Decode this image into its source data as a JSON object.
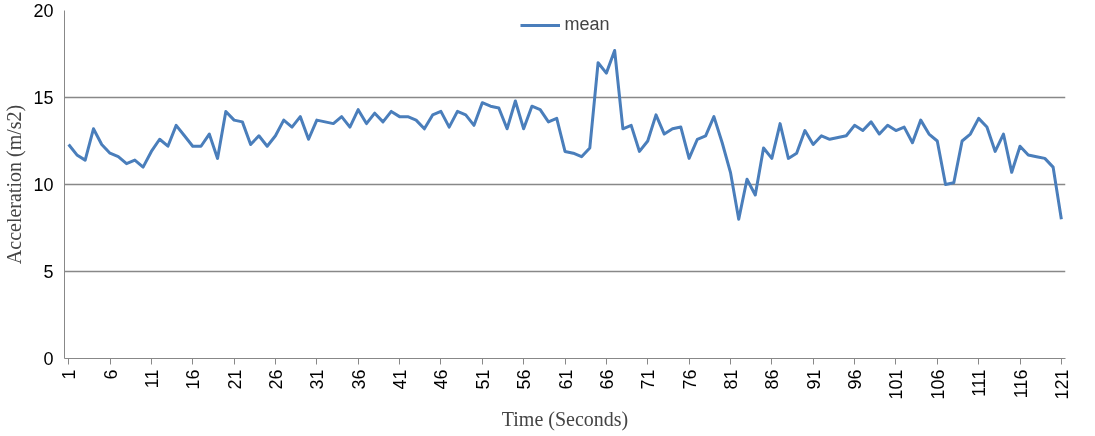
{
  "chart_data": {
    "type": "line",
    "xlabel": "Time (Seconds)",
    "ylabel": "Acceleration (m/s2)",
    "x": [
      1,
      2,
      3,
      4,
      5,
      6,
      7,
      8,
      9,
      10,
      11,
      12,
      13,
      14,
      15,
      16,
      17,
      18,
      19,
      20,
      21,
      22,
      23,
      24,
      25,
      26,
      27,
      28,
      29,
      30,
      31,
      32,
      33,
      34,
      35,
      36,
      37,
      38,
      39,
      40,
      41,
      42,
      43,
      44,
      45,
      46,
      47,
      48,
      49,
      50,
      51,
      52,
      53,
      54,
      55,
      56,
      57,
      58,
      59,
      60,
      61,
      62,
      63,
      64,
      65,
      66,
      67,
      68,
      69,
      70,
      71,
      72,
      73,
      74,
      75,
      76,
      77,
      78,
      79,
      80,
      81,
      82,
      83,
      84,
      85,
      86,
      87,
      88,
      89,
      90,
      91,
      92,
      93,
      94,
      95,
      96,
      97,
      98,
      99,
      100,
      101,
      102,
      103,
      104,
      105,
      106,
      107,
      108,
      109,
      110,
      111,
      112,
      113,
      114,
      115,
      116,
      117,
      118,
      119,
      120,
      121
    ],
    "series": [
      {
        "name": "mean",
        "color": "#4a7ebb",
        "values": [
          12.3,
          11.7,
          11.4,
          13.2,
          12.3,
          11.8,
          11.6,
          11.2,
          11.4,
          11.0,
          11.9,
          12.6,
          12.2,
          13.4,
          12.8,
          12.2,
          12.2,
          12.9,
          11.5,
          14.2,
          13.7,
          13.6,
          12.3,
          12.8,
          12.2,
          12.8,
          13.7,
          13.3,
          13.9,
          12.6,
          13.7,
          13.6,
          13.5,
          13.9,
          13.3,
          14.3,
          13.5,
          14.1,
          13.6,
          14.2,
          13.9,
          13.9,
          13.7,
          13.2,
          14.0,
          14.2,
          13.3,
          14.2,
          14.0,
          13.4,
          14.7,
          14.5,
          14.4,
          13.2,
          14.8,
          13.2,
          14.5,
          14.3,
          13.6,
          13.8,
          11.9,
          11.8,
          11.6,
          12.1,
          17.0,
          16.4,
          17.7,
          13.2,
          13.4,
          11.9,
          12.5,
          14.0,
          12.9,
          13.2,
          13.3,
          11.5,
          12.6,
          12.8,
          13.9,
          12.4,
          10.7,
          8.0,
          10.3,
          9.4,
          12.1,
          11.5,
          13.5,
          11.5,
          11.8,
          13.1,
          12.3,
          12.8,
          12.6,
          12.7,
          12.8,
          13.4,
          13.1,
          13.6,
          12.9,
          13.4,
          13.1,
          13.3,
          12.4,
          13.7,
          12.9,
          12.5,
          10.0,
          10.1,
          12.5,
          12.9,
          13.8,
          13.3,
          11.9,
          12.9,
          10.7,
          12.2,
          11.7,
          11.6,
          11.5,
          11.0,
          8.0
        ]
      }
    ],
    "xlim": [
      0.5,
      121.5
    ],
    "xticks": [
      1,
      6,
      11,
      16,
      21,
      26,
      31,
      36,
      41,
      46,
      51,
      56,
      61,
      66,
      71,
      76,
      81,
      86,
      91,
      96,
      101,
      106,
      111,
      116,
      121
    ],
    "ylim": [
      0,
      20
    ],
    "yticks": [
      0,
      5,
      10,
      15,
      20
    ],
    "grid": "y",
    "legend": "top",
    "marker": "none",
    "line_style": "solid"
  }
}
